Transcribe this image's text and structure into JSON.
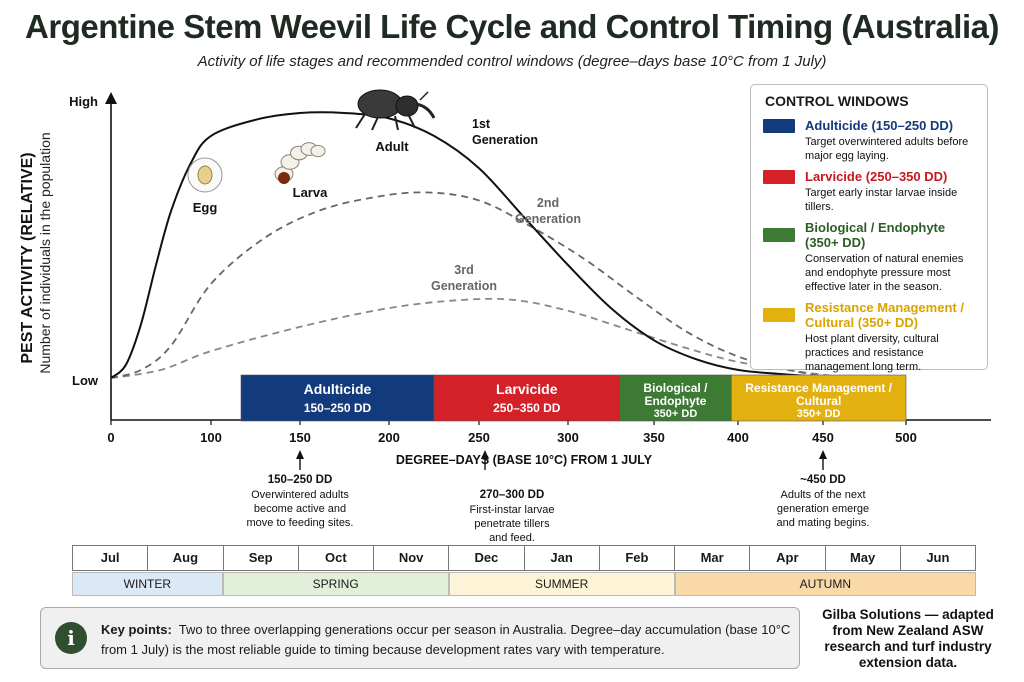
{
  "header": {
    "title": "Argentine Stem Weevil Life Cycle and Control Timing (Australia)",
    "subtitle": "Activity of life stages and recommended control windows (degree–days base 10°C from 1 July)"
  },
  "chart_data": {
    "type": "line",
    "title": "Argentine Stem Weevil Life Cycle and Control Timing (Australia)",
    "xlabel": "DEGREE–DAYS (BASE 10°C) FROM 1 JULY",
    "ylabel": "PEST ACTIVITY (RELATIVE)",
    "ylabel_sub": "Number of individuals in the population",
    "xlim": [
      0,
      500
    ],
    "x_ticks": [
      0,
      100,
      150,
      200,
      250,
      300,
      350,
      400,
      450,
      500
    ],
    "y_tick_labels": {
      "high": "High",
      "low": "Low"
    },
    "ylim": [
      0,
      1
    ],
    "series": [
      {
        "name": "1st Generation",
        "style": "solid",
        "color": "#111111",
        "x": [
          0,
          15,
          30,
          45,
          60,
          80,
          100,
          125,
          150,
          175,
          200,
          225,
          250,
          275,
          300,
          325,
          350,
          375,
          400,
          425,
          450,
          480
        ],
        "y": [
          0,
          0.05,
          0.2,
          0.42,
          0.62,
          0.8,
          0.9,
          0.96,
          0.985,
          0.985,
          0.965,
          0.9,
          0.78,
          0.6,
          0.42,
          0.26,
          0.14,
          0.07,
          0.03,
          0.015,
          0.005,
          0
        ]
      },
      {
        "name": "2nd Generation",
        "style": "dashed",
        "color": "#666666",
        "x": [
          0,
          30,
          60,
          100,
          130,
          160,
          190,
          220,
          250,
          280,
          310,
          340,
          370,
          400,
          430,
          455
        ],
        "y": [
          0,
          0.03,
          0.12,
          0.35,
          0.52,
          0.62,
          0.67,
          0.69,
          0.66,
          0.56,
          0.44,
          0.3,
          0.17,
          0.08,
          0.03,
          0
        ]
      },
      {
        "name": "3rd Generation",
        "style": "dashed",
        "color": "#888888",
        "x": [
          0,
          50,
          100,
          150,
          200,
          240,
          270,
          300,
          330,
          370,
          400,
          440,
          470
        ],
        "y": [
          0,
          0.03,
          0.1,
          0.19,
          0.26,
          0.29,
          0.29,
          0.25,
          0.19,
          0.11,
          0.06,
          0.02,
          0
        ]
      }
    ],
    "stage_labels": [
      {
        "text": "Egg",
        "x": 53
      },
      {
        "text": "Larva",
        "x": 110
      },
      {
        "text": "Adult",
        "x": 160
      }
    ],
    "series_labels": [
      {
        "line1": "1st",
        "line2": "Generation"
      },
      {
        "line1": "2nd",
        "line2": "Generation"
      },
      {
        "line1": "3rd",
        "line2": "Generation"
      }
    ],
    "control_bands": [
      {
        "label": "Adulticide",
        "range_text": "150–250 DD",
        "from": 117,
        "to": 225,
        "color": "#123a7c"
      },
      {
        "label": "Larvicide",
        "range_text": "250–350 DD",
        "from": 225,
        "to": 330,
        "color": "#d42027"
      },
      {
        "label": "Biological / Endophyte",
        "range_text": "350+ DD",
        "from": 330,
        "to": 396,
        "color": "#3d7a34"
      },
      {
        "label": "Resistance Management / Cultural",
        "range_text": "350+ DD",
        "from": 396,
        "to": 500,
        "color": "#e3b10f"
      }
    ],
    "annotations": [
      {
        "x": 150,
        "title": "150–250 DD",
        "lines": [
          "Overwintered adults",
          "become active and",
          "move to feeding sites."
        ]
      },
      {
        "x": 275,
        "title": "270–300 DD",
        "lines": [
          "First-instar larvae",
          "penetrate tillers",
          "and feed."
        ]
      },
      {
        "x": 450,
        "title": "~450 DD",
        "lines": [
          "Adults of the next",
          "generation emerge",
          "and mating begins."
        ]
      }
    ],
    "colors": {
      "adulticide": "#123a7c",
      "larvicide": "#d42027",
      "biological": "#3d7a34",
      "resistance": "#e3b10f"
    }
  },
  "legend": {
    "title": "CONTROL WINDOWS",
    "items": [
      {
        "label": "Adulticide (150–250 DD)",
        "desc": "Target overwintered adults before major egg laying.",
        "color": "#123a7c",
        "text_color": "#123a7c"
      },
      {
        "label": "Larvicide (250–350 DD)",
        "desc": "Target early instar larvae inside tillers.",
        "color": "#d42027",
        "text_color": "#c8181f"
      },
      {
        "label": "Biological / Endophyte (350+ DD)",
        "desc": "Conservation of natural enemies and endophyte pressure most effective later in the season.",
        "color": "#3d7a34",
        "text_color": "#2d5e27"
      },
      {
        "label": "Resistance Management / Cultural (350+ DD)",
        "desc": "Host plant diversity, cultural practices and resistance management long term.",
        "color": "#e3b10f",
        "text_color": "#d9a300"
      }
    ]
  },
  "calendar": {
    "months": [
      "Jul",
      "Aug",
      "Sep",
      "Oct",
      "Nov",
      "Dec",
      "Jan",
      "Feb",
      "Mar",
      "Apr",
      "May",
      "Jun"
    ],
    "seasons": [
      {
        "name": "WINTER",
        "months": 2,
        "color": "#dbe9f7"
      },
      {
        "name": "SPRING",
        "months": 3,
        "color": "#e2efd9"
      },
      {
        "name": "SUMMER",
        "months": 3,
        "color": "#fdf3d6"
      },
      {
        "name": "AUTUMN",
        "months": 4,
        "color": "#f9d9a8"
      }
    ]
  },
  "key_points": {
    "label": "Key points:",
    "text": "Two to three overlapping generations occur per season in Australia. Degree–day accumulation (base 10°C from 1 July) is the most reliable guide to timing because development rates vary with temperature.",
    "icon": "info-icon"
  },
  "credit": "Gilba Solutions — adapted from New Zealand ASW research and turf industry extension data."
}
